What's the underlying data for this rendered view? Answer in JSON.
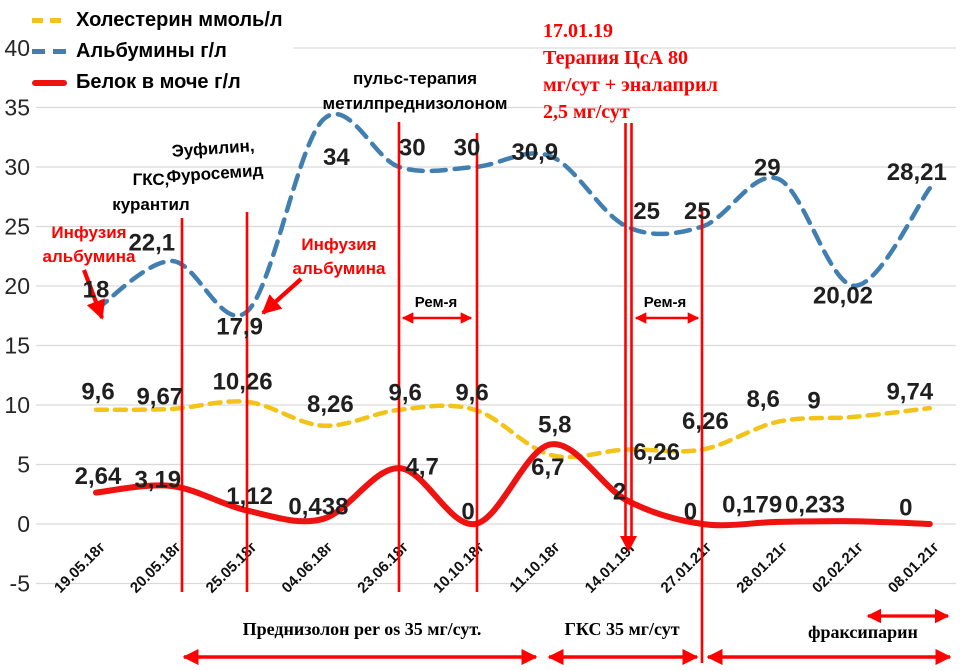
{
  "legend": {
    "items": [
      {
        "label": "Холестерин ммоль/л"
      },
      {
        "label": "Альбумины г/л"
      },
      {
        "label": "Белок в моче г/л"
      }
    ]
  },
  "annotations": {
    "gks_kurantil": "ГКС,\nкурантил",
    "eufilin": "Эуфилин,\nФуросемид",
    "pulse_therapy": "пульс-терапия\nметилпреднизолоном",
    "infusion_albumin_left": "Инфузия\nальбумина",
    "infusion_albumin_mid": "Инфузия\nальбумина",
    "therapy_csa": "17.01.19\nТерапия ЦсА 80\nмг/сут + эналаприл\n2,5 мг/сут",
    "remission_1": "Рем-я",
    "remission_2": "Рем-я",
    "prednisolone": "Преднизолон per os 35 мг/сут.",
    "gks_35": "ГКС 35 мг/сут",
    "fraxiparin": "фраксипарин"
  },
  "chart_data": {
    "type": "line",
    "categories": [
      "19.05.18г",
      "20.05.18г",
      "25.05.18г",
      "04.06.18г",
      "23.06.18г",
      "10.10.18г",
      "11.10.18г",
      "14.01.19г",
      "27.01.21г",
      "28.01.21г",
      "02.02.21г",
      "08.01.21г"
    ],
    "yticks": [
      40,
      35,
      30,
      25,
      20,
      15,
      10,
      5,
      0,
      -5
    ],
    "ylim": [
      -5,
      40
    ],
    "grid": true,
    "legend_position": "top-left",
    "series": [
      {
        "id": "cholesterol",
        "name": "Холестерин ммоль/л",
        "color": "#F2C318",
        "dashed": true,
        "dash": "11 8",
        "width": 4.5,
        "values": [
          9.6,
          9.67,
          10.26,
          8.26,
          9.6,
          9.6,
          5.8,
          6.26,
          6.26,
          8.6,
          9,
          9.74
        ],
        "point_labels": [
          "9,6",
          "9,67",
          "10,26",
          "8,26",
          "9,6",
          "9,6",
          "5,8",
          "6,26",
          "6,26",
          "8,6",
          "9",
          "9,74"
        ],
        "label_offsets": [
          [
            2,
            -18
          ],
          [
            -12,
            -12
          ],
          [
            -5,
            -20
          ],
          [
            7,
            -21
          ],
          [
            6,
            -17
          ],
          [
            -3,
            -17
          ],
          [
            4,
            -30
          ],
          [
            30,
            3
          ],
          [
            3,
            -28
          ],
          [
            -15,
            -22
          ],
          [
            -40,
            -16
          ],
          [
            -20,
            -16
          ]
        ]
      },
      {
        "id": "albumins",
        "name": "Альбумины г/л",
        "color": "#417FB1",
        "dashed": true,
        "dash": "14 9",
        "width": 4.5,
        "values": [
          18,
          22.1,
          17.9,
          34,
          30,
          30,
          30.9,
          25,
          25,
          29,
          20.02,
          28.21
        ],
        "point_labels": [
          "18",
          "22,1",
          "17,9",
          "34",
          "30",
          "30",
          "30,9",
          "25",
          "25",
          "29",
          "20,02",
          "28,21"
        ],
        "label_offsets": [
          [
            0,
            -20
          ],
          [
            -20,
            -18
          ],
          [
            -8,
            16
          ],
          [
            13,
            38
          ],
          [
            13,
            -19
          ],
          [
            -8,
            -19
          ],
          [
            -16,
            -4
          ],
          [
            20,
            -15
          ],
          [
            -5,
            -15
          ],
          [
            -11,
            -11
          ],
          [
            -11,
            10
          ],
          [
            -13,
            -16
          ]
        ]
      },
      {
        "id": "urine-protein",
        "name": "Белок в моче г/л",
        "color": "#EE1211",
        "dashed": false,
        "dash": "",
        "width": 6,
        "values": [
          2.64,
          3.19,
          1.12,
          0.438,
          4.7,
          0,
          6.7,
          2,
          0,
          0.179,
          0.233,
          0
        ],
        "point_labels": [
          "2,64",
          "3,19",
          "1,12",
          "0,438",
          "4,7",
          "0",
          "6,7",
          "2",
          "0",
          "0,179",
          "0,233",
          "0"
        ],
        "label_offsets": [
          [
            2,
            -16
          ],
          [
            -14,
            -6
          ],
          [
            2,
            -14
          ],
          [
            -5,
            -12
          ],
          [
            23,
            -1
          ],
          [
            -7,
            -12
          ],
          [
            -3,
            23
          ],
          [
            -7,
            -8
          ],
          [
            -12,
            -12
          ],
          [
            -26,
            -17
          ],
          [
            -39,
            -16
          ],
          [
            -24,
            -16
          ]
        ]
      }
    ]
  },
  "colors": {
    "accent_red": "#FF0000",
    "grid": "#D9D9D9",
    "text": "#111111"
  }
}
